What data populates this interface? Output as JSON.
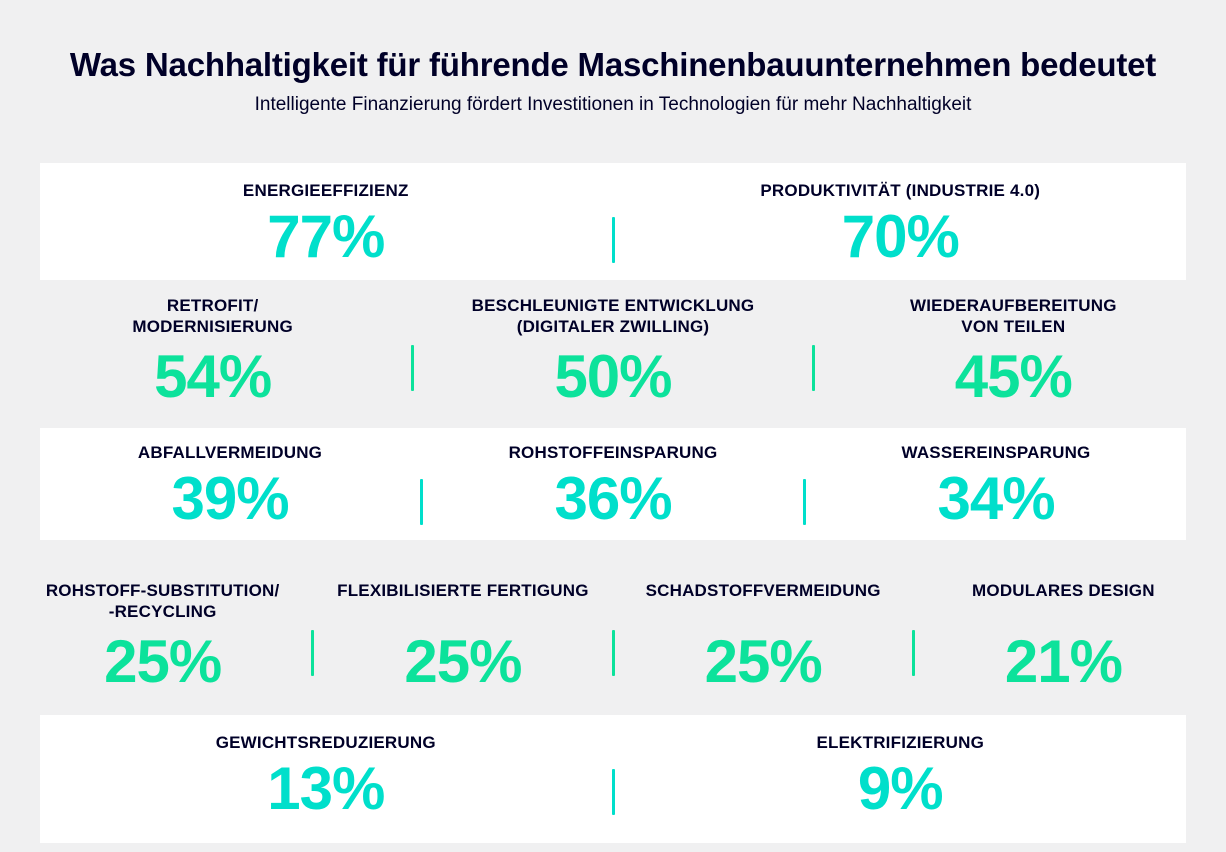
{
  "header": {
    "title": "Was Nachhaltigkeit für führende Maschinenbauunternehmen bedeutet",
    "subtitle": "Intelligente Finanzierung fördert Investitionen in Technologien für mehr Nachhaltigkeit"
  },
  "colors": {
    "deep_blue": "#000028",
    "turquoise": "#00DFCB",
    "green": "#0CE29B",
    "page_bg": "#F0F0F1",
    "card_bg": "#FFFFFF"
  },
  "rows": [
    {
      "variant": "card",
      "accent": "turquoise",
      "items": [
        {
          "label_lines": [
            "ENERGIEEFFIZIENZ"
          ],
          "value": "77%"
        },
        {
          "label_lines": [
            "PRODUKTIVITÄT (INDUSTRIE 4.0)"
          ],
          "value": "70%"
        }
      ]
    },
    {
      "variant": "plain",
      "accent": "green",
      "items": [
        {
          "label_lines": [
            "RETROFIT/",
            "MODERNISIERUNG"
          ],
          "value": "54%"
        },
        {
          "label_lines": [
            "BESCHLEUNIGTE ENTWICKLUNG",
            "(DIGITALER ZWILLING)"
          ],
          "value": "50%"
        },
        {
          "label_lines": [
            "WIEDERAUFBEREITUNG",
            "VON TEILEN"
          ],
          "value": "45%"
        }
      ]
    },
    {
      "variant": "card",
      "accent": "turquoise",
      "items": [
        {
          "label_lines": [
            "ABFALLVERMEIDUNG"
          ],
          "value": "39%"
        },
        {
          "label_lines": [
            "ROHSTOFFEINSPARUNG"
          ],
          "value": "36%"
        },
        {
          "label_lines": [
            "WASSEREINSPARUNG"
          ],
          "value": "34%"
        }
      ]
    },
    {
      "variant": "plain",
      "accent": "green",
      "items": [
        {
          "label_lines": [
            "ROHSTOFF-SUBSTITUTION/",
            "-RECYCLING"
          ],
          "value": "25%"
        },
        {
          "label_lines": [
            "FLEXIBILISIERTE FERTIGUNG"
          ],
          "value": "25%"
        },
        {
          "label_lines": [
            "SCHADSTOFFVERMEIDUNG"
          ],
          "value": "25%"
        },
        {
          "label_lines": [
            "MODULARES DESIGN"
          ],
          "value": "21%"
        }
      ]
    },
    {
      "variant": "card",
      "accent": "turquoise",
      "items": [
        {
          "label_lines": [
            "GEWICHTSREDUZIERUNG"
          ],
          "value": "13%"
        },
        {
          "label_lines": [
            "ELEKTRIFIZIERUNG"
          ],
          "value": "9%"
        }
      ]
    }
  ],
  "chart_data": {
    "type": "table",
    "title": "Was Nachhaltigkeit für führende Maschinenbauunternehmen bedeutet",
    "subtitle": "Intelligente Finanzierung fördert Investitionen in Technologien für mehr Nachhaltigkeit",
    "unit": "%",
    "categories": [
      "Energieeffizienz",
      "Produktivität (Industrie 4.0)",
      "Retrofit/Modernisierung",
      "Beschleunigte Entwicklung (Digitaler Zwilling)",
      "Wiederaufbereitung von Teilen",
      "Abfallvermeidung",
      "Rohstoffeinsparung",
      "Wassereinsparung",
      "Rohstoff-Substitution/-Recycling",
      "Flexibilisierte Fertigung",
      "Schadstoffvermeidung",
      "Modulares Design",
      "Gewichtsreduzierung",
      "Elektrifizierung"
    ],
    "values": [
      77,
      70,
      54,
      50,
      45,
      39,
      36,
      34,
      25,
      25,
      25,
      21,
      13,
      9
    ]
  }
}
